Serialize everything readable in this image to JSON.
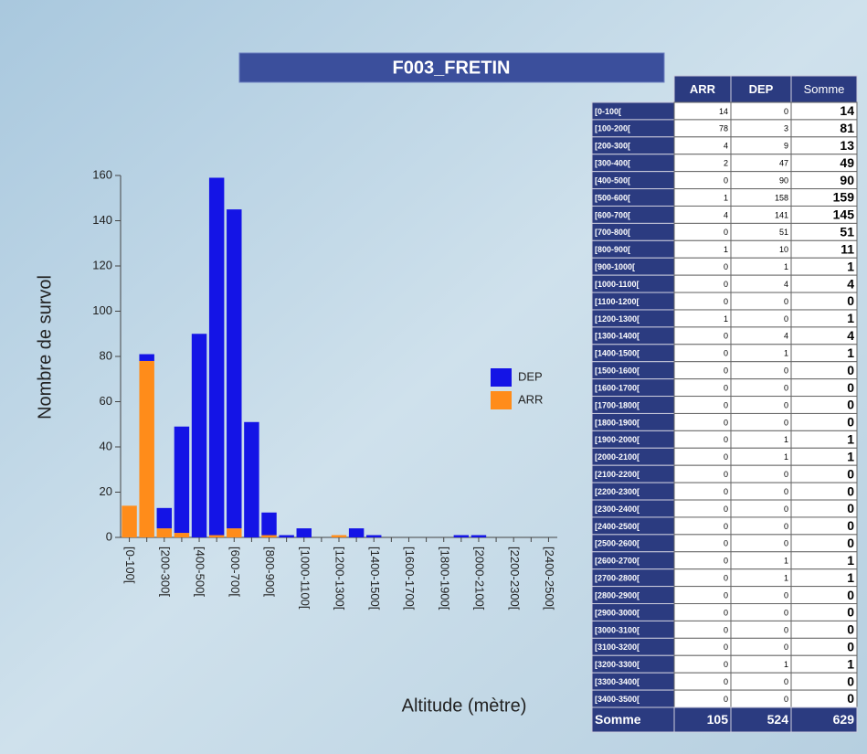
{
  "chart_data": {
    "type": "bar",
    "stacked": true,
    "title": "F003_FRETIN",
    "y_label": "Nombre de survol",
    "x_label": "Altitude (mètre)",
    "categories": [
      "[0-100[",
      null,
      "[200-300[",
      null,
      "[400-500[",
      null,
      "[600-700[",
      null,
      "[800-900[",
      null,
      "[1000-1100[",
      null,
      "[1200-1300[",
      null,
      "[1400-1500[",
      null,
      "[1600-1700[",
      null,
      "[1800-1900[",
      null,
      "[2000-2100[",
      null,
      "[2200-2300[",
      null,
      "[2400-2500["
    ],
    "series": [
      {
        "name": "ARR",
        "color": "#ff8c1a",
        "values": [
          14,
          78,
          4,
          2,
          0,
          1,
          4,
          0,
          1,
          0,
          0,
          0,
          1,
          0,
          0,
          0,
          0,
          0,
          0,
          0,
          0,
          0,
          0,
          0,
          0
        ]
      },
      {
        "name": "DEP",
        "color": "#1414e6",
        "values": [
          0,
          3,
          9,
          47,
          90,
          158,
          141,
          51,
          10,
          1,
          4,
          0,
          0,
          4,
          1,
          0,
          0,
          0,
          0,
          1,
          1,
          0,
          0,
          0,
          0
        ]
      }
    ],
    "ylim": [
      0,
      160
    ],
    "yticks": [
      0,
      20,
      40,
      60,
      80,
      100,
      120,
      140,
      160
    ],
    "legend": "right"
  },
  "table": {
    "columns": [
      "ARR",
      "DEP",
      "Somme"
    ],
    "rows": [
      {
        "label": "[0-100[",
        "values": [
          14,
          0,
          14
        ]
      },
      {
        "label": "[100-200[",
        "values": [
          78,
          3,
          81
        ]
      },
      {
        "label": "[200-300[",
        "values": [
          4,
          9,
          13
        ]
      },
      {
        "label": "[300-400[",
        "values": [
          2,
          47,
          49
        ]
      },
      {
        "label": "[400-500[",
        "values": [
          0,
          90,
          90
        ]
      },
      {
        "label": "[500-600[",
        "values": [
          1,
          158,
          159
        ]
      },
      {
        "label": "[600-700[",
        "values": [
          4,
          141,
          145
        ]
      },
      {
        "label": "[700-800[",
        "values": [
          0,
          51,
          51
        ]
      },
      {
        "label": "[800-900[",
        "values": [
          1,
          10,
          11
        ]
      },
      {
        "label": "[900-1000[",
        "values": [
          0,
          1,
          1
        ]
      },
      {
        "label": "[1000-1100[",
        "values": [
          0,
          4,
          4
        ]
      },
      {
        "label": "[1100-1200[",
        "values": [
          0,
          0,
          0
        ]
      },
      {
        "label": "[1200-1300[",
        "values": [
          1,
          0,
          1
        ]
      },
      {
        "label": "[1300-1400[",
        "values": [
          0,
          4,
          4
        ]
      },
      {
        "label": "[1400-1500[",
        "values": [
          0,
          1,
          1
        ]
      },
      {
        "label": "[1500-1600[",
        "values": [
          0,
          0,
          0
        ]
      },
      {
        "label": "[1600-1700[",
        "values": [
          0,
          0,
          0
        ]
      },
      {
        "label": "[1700-1800[",
        "values": [
          0,
          0,
          0
        ]
      },
      {
        "label": "[1800-1900[",
        "values": [
          0,
          0,
          0
        ]
      },
      {
        "label": "[1900-2000[",
        "values": [
          0,
          1,
          1
        ]
      },
      {
        "label": "[2000-2100[",
        "values": [
          0,
          1,
          1
        ]
      },
      {
        "label": "[2100-2200[",
        "values": [
          0,
          0,
          0
        ]
      },
      {
        "label": "[2200-2300[",
        "values": [
          0,
          0,
          0
        ]
      },
      {
        "label": "[2300-2400[",
        "values": [
          0,
          0,
          0
        ]
      },
      {
        "label": "[2400-2500[",
        "values": [
          0,
          0,
          0
        ]
      },
      {
        "label": "[2500-2600[",
        "values": [
          0,
          0,
          0
        ]
      },
      {
        "label": "[2600-2700[",
        "values": [
          0,
          1,
          1
        ]
      },
      {
        "label": "[2700-2800[",
        "values": [
          0,
          1,
          1
        ]
      },
      {
        "label": "[2800-2900[",
        "values": [
          0,
          0,
          0
        ]
      },
      {
        "label": "[2900-3000[",
        "values": [
          0,
          0,
          0
        ]
      },
      {
        "label": "[3000-3100[",
        "values": [
          0,
          0,
          0
        ]
      },
      {
        "label": "[3100-3200[",
        "values": [
          0,
          0,
          0
        ]
      },
      {
        "label": "[3200-3300[",
        "values": [
          0,
          1,
          1
        ]
      },
      {
        "label": "[3300-3400[",
        "values": [
          0,
          0,
          0
        ]
      },
      {
        "label": "[3400-3500[",
        "values": [
          0,
          0,
          0
        ]
      }
    ],
    "total": {
      "label": "Somme",
      "values": [
        105,
        524,
        629
      ]
    }
  }
}
